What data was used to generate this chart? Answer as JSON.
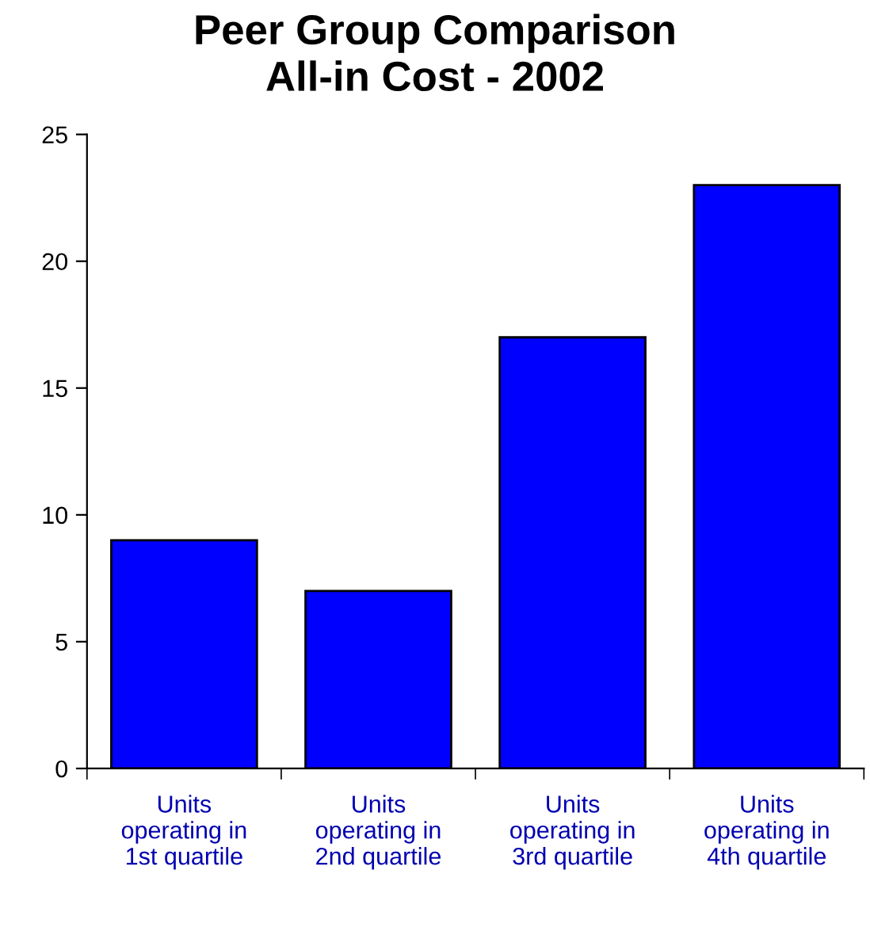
{
  "chart_data": {
    "type": "bar",
    "title": "Peer Group Comparison\nAll-in Cost - 2002",
    "categories": [
      "Units\noperating in\n1st quartile",
      "Units\noperating in\n2nd quartile",
      "Units\noperating in\n3rd quartile",
      "Units\noperating in\n4th quartile"
    ],
    "values": [
      9,
      7,
      17,
      23
    ],
    "color": "#0000ff",
    "ylim": [
      0,
      25
    ],
    "yticks": [
      0,
      5,
      10,
      15,
      20,
      25
    ],
    "grid": false,
    "legend": false
  }
}
